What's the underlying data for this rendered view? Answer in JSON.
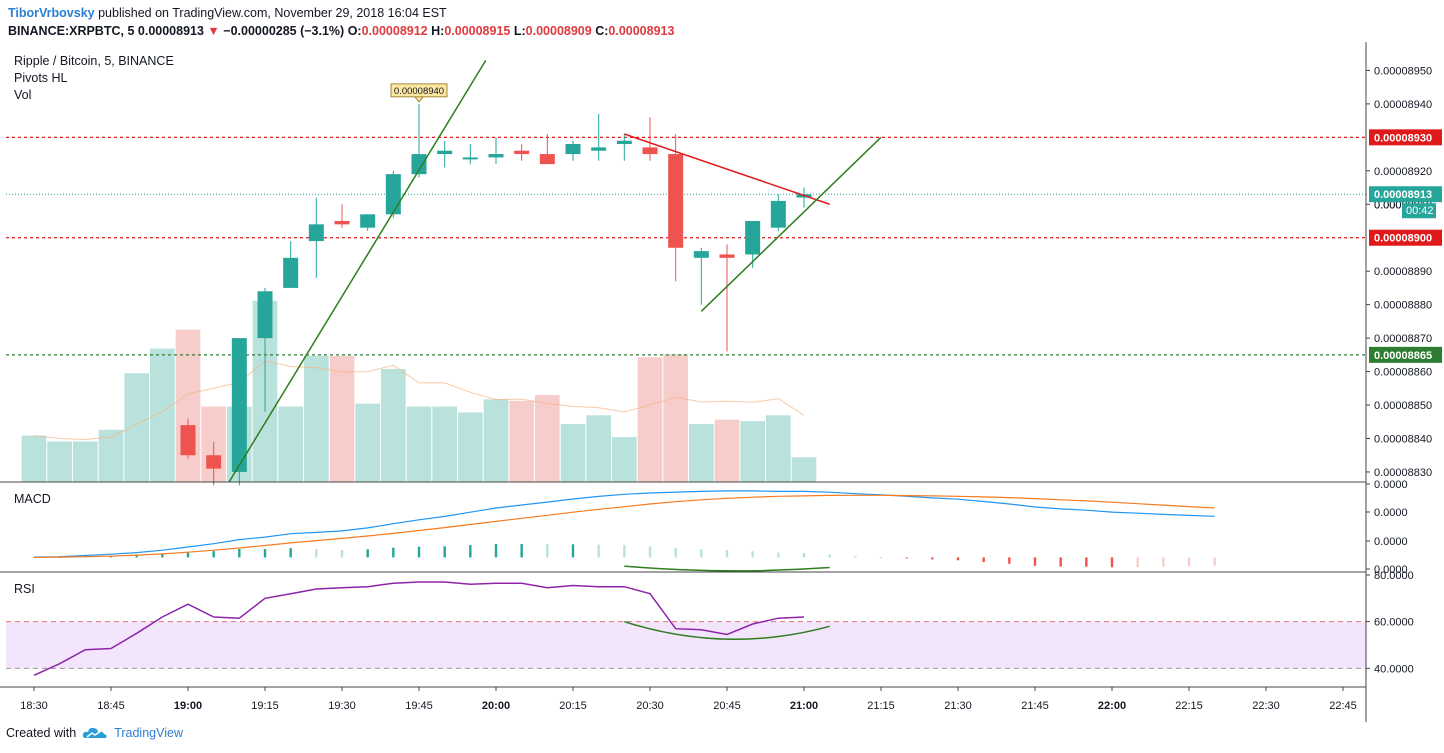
{
  "header": {
    "author": "TiborVrbovsky",
    "published": "published on TradingView.com, November 29, 2018 16:04 EST",
    "symbol": "BINANCE:XRPBTC, 5",
    "last": "0.00008913",
    "change": "−0.00000285 (−3.1%)",
    "ohlc": [
      {
        "k": "O:",
        "v": "0.00008912"
      },
      {
        "k": "H:",
        "v": "0.00008915"
      },
      {
        "k": "L:",
        "v": "0.00008909"
      },
      {
        "k": "C:",
        "v": "0.00008913"
      }
    ]
  },
  "legend": [
    "Ripple / Bitcoin, 5, BINANCE",
    "Pivots HL",
    "Vol"
  ],
  "pivot_label": "0.00008940",
  "footer": {
    "created_with": "Created with",
    "brand": "TradingView"
  },
  "colors": {
    "up": "#26a69a",
    "down": "#ef5350",
    "up_vol": "#b9e2dd",
    "down_vol": "#f7cdcc",
    "resistance": "#e0191b",
    "support": "#2e7d32",
    "trend_green": "#2e7d1e",
    "trend_red": "#e0191b",
    "macd": "#2196f3",
    "signal": "#f57c20",
    "rsi": "#8e24aa",
    "rsi_band": "#f3e5fc",
    "current": "#26a69a"
  },
  "chart_data": {
    "type": "candlestick",
    "price_axis": {
      "ticks": [
        "0.00008950",
        "0.00008940",
        "0.00008920",
        "0.00008910",
        "0.00008890",
        "0.00008880",
        "0.00008870",
        "0.00008860",
        "0.00008850",
        "0.00008840",
        "0.00008830"
      ],
      "tick_values": [
        8950,
        8940,
        8920,
        8910,
        8890,
        8880,
        8870,
        8860,
        8850,
        8840,
        8830
      ],
      "range": [
        8827,
        8957
      ],
      "unit": "1e-8 BTC"
    },
    "time_axis": {
      "labels": [
        "18:30",
        "18:45",
        "19:00",
        "19:15",
        "19:30",
        "19:45",
        "20:00",
        "20:15",
        "20:30",
        "20:45",
        "21:00",
        "21:15",
        "21:30",
        "21:45",
        "22:00",
        "22:15",
        "22:30",
        "22:45"
      ],
      "bold": [
        "19:00",
        "20:00",
        "21:00",
        "22:00"
      ]
    },
    "candles": [
      {
        "t": "19:00",
        "o": 8844,
        "h": 8846,
        "l": 8834,
        "c": 8835
      },
      {
        "t": "19:05",
        "o": 8835,
        "h": 8839,
        "l": 8826,
        "c": 8831
      },
      {
        "t": "19:10",
        "o": 8830,
        "h": 8870,
        "l": 8826,
        "c": 8870
      },
      {
        "t": "19:15",
        "o": 8870,
        "h": 8885,
        "l": 8848,
        "c": 8884
      },
      {
        "t": "19:20",
        "o": 8885,
        "h": 8899,
        "l": 8885,
        "c": 8894
      },
      {
        "t": "19:25",
        "o": 8899,
        "h": 8912,
        "l": 8888,
        "c": 8904
      },
      {
        "t": "19:30",
        "o": 8905,
        "h": 8910,
        "l": 8903,
        "c": 8904
      },
      {
        "t": "19:35",
        "o": 8903,
        "h": 8907,
        "l": 8902,
        "c": 8907
      },
      {
        "t": "19:40",
        "o": 8907,
        "h": 8920,
        "l": 8906,
        "c": 8919
      },
      {
        "t": "19:45",
        "o": 8919,
        "h": 8940,
        "l": 8918,
        "c": 8925
      },
      {
        "t": "19:50",
        "o": 8925,
        "h": 8929,
        "l": 8921,
        "c": 8926
      },
      {
        "t": "19:55",
        "o": 8924,
        "h": 8928,
        "l": 8922,
        "c": 8924
      },
      {
        "t": "20:00",
        "o": 8924,
        "h": 8930,
        "l": 8922,
        "c": 8925
      },
      {
        "t": "20:05",
        "o": 8926,
        "h": 8928,
        "l": 8923,
        "c": 8925
      },
      {
        "t": "20:10",
        "o": 8925,
        "h": 8931,
        "l": 8922,
        "c": 8922
      },
      {
        "t": "20:15",
        "o": 8925,
        "h": 8929,
        "l": 8923,
        "c": 8928
      },
      {
        "t": "20:20",
        "o": 8926,
        "h": 8937,
        "l": 8923,
        "c": 8927
      },
      {
        "t": "20:25",
        "o": 8928,
        "h": 8931,
        "l": 8923,
        "c": 8929
      },
      {
        "t": "20:30",
        "o": 8927,
        "h": 8936,
        "l": 8923,
        "c": 8925
      },
      {
        "t": "20:35",
        "o": 8925,
        "h": 8931,
        "l": 8887,
        "c": 8897
      },
      {
        "t": "20:40",
        "o": 8894,
        "h": 8897,
        "l": 8880,
        "c": 8896
      },
      {
        "t": "20:45",
        "o": 8895,
        "h": 8898,
        "l": 8866,
        "c": 8894
      },
      {
        "t": "20:50",
        "o": 8895,
        "h": 8905,
        "l": 8891,
        "c": 8905
      },
      {
        "t": "20:55",
        "o": 8903,
        "h": 8913,
        "l": 8902,
        "c": 8911
      },
      {
        "t": "21:00",
        "o": 8912,
        "h": 8915,
        "l": 8909,
        "c": 8913
      }
    ],
    "volume": [
      {
        "t": "18:30",
        "v": 3.2,
        "up": true
      },
      {
        "t": "18:35",
        "v": 2.8,
        "up": true
      },
      {
        "t": "18:40",
        "v": 2.8,
        "up": true
      },
      {
        "t": "18:45",
        "v": 3.6,
        "up": true
      },
      {
        "t": "18:50",
        "v": 7.5,
        "up": true
      },
      {
        "t": "18:55",
        "v": 9.2,
        "up": true
      },
      {
        "t": "19:00",
        "v": 10.5,
        "up": false
      },
      {
        "t": "19:05",
        "v": 5.2,
        "up": false
      },
      {
        "t": "19:10",
        "v": 5.2,
        "up": true
      },
      {
        "t": "19:15",
        "v": 12.5,
        "up": true
      },
      {
        "t": "19:20",
        "v": 5.2,
        "up": true
      },
      {
        "t": "19:25",
        "v": 8.7,
        "up": true
      },
      {
        "t": "19:30",
        "v": 8.7,
        "up": false
      },
      {
        "t": "19:35",
        "v": 5.4,
        "up": true
      },
      {
        "t": "19:40",
        "v": 7.8,
        "up": true
      },
      {
        "t": "19:45",
        "v": 5.2,
        "up": true
      },
      {
        "t": "19:50",
        "v": 5.2,
        "up": true
      },
      {
        "t": "19:55",
        "v": 4.8,
        "up": true
      },
      {
        "t": "20:00",
        "v": 5.7,
        "up": true
      },
      {
        "t": "20:05",
        "v": 5.6,
        "up": false
      },
      {
        "t": "20:10",
        "v": 6.0,
        "up": false
      },
      {
        "t": "20:15",
        "v": 4.0,
        "up": true
      },
      {
        "t": "20:20",
        "v": 4.6,
        "up": true
      },
      {
        "t": "20:25",
        "v": 3.1,
        "up": true
      },
      {
        "t": "20:30",
        "v": 8.6,
        "up": false
      },
      {
        "t": "20:35",
        "v": 8.8,
        "up": false
      },
      {
        "t": "20:40",
        "v": 4.0,
        "up": true
      },
      {
        "t": "20:45",
        "v": 4.3,
        "up": false
      },
      {
        "t": "20:50",
        "v": 4.2,
        "up": true
      },
      {
        "t": "20:55",
        "v": 4.6,
        "up": true
      },
      {
        "t": "21:00",
        "v": 1.7,
        "up": true
      }
    ],
    "horizontal_lines": [
      {
        "label": "0.00008930",
        "value": 8930,
        "kind": "resistance"
      },
      {
        "label": "0.00008900",
        "value": 8900,
        "kind": "resistance"
      },
      {
        "label": "0.00008865",
        "value": 8865,
        "kind": "support"
      }
    ],
    "current_price": {
      "label": "0.00008913",
      "value": 8913,
      "countdown": "00:42",
      "hidden_tick": "0.00008910"
    },
    "trendlines": [
      {
        "kind": "trend_green",
        "from": {
          "t": "19:08",
          "p": 8827
        },
        "to": {
          "t": "19:58",
          "p": 8953
        }
      },
      {
        "kind": "trend_red",
        "from": {
          "t": "20:25",
          "p": 8931
        },
        "to": {
          "t": "21:05",
          "p": 8910
        }
      },
      {
        "kind": "trend_green",
        "from": {
          "t": "20:40",
          "p": 8878
        },
        "to": {
          "t": "21:15",
          "p": 8930
        }
      }
    ],
    "macd": {
      "title": "MACD",
      "tick_labels": [
        "0.0000",
        "0.0000",
        "0.0000",
        "0.0000"
      ],
      "macd": [
        0.2,
        0.5,
        1.3,
        2.2,
        3.3,
        5.0,
        7.2,
        9.5,
        12.3,
        14.0,
        16.4,
        17.3,
        18.3,
        20.4,
        23.3,
        26.0,
        28.3,
        31.2,
        34.1,
        36.2,
        38.2,
        40.3,
        42.1,
        43.6,
        44.5,
        45.1,
        45.6,
        45.9,
        45.9,
        45.6,
        45.6,
        45.0,
        44.0,
        43.2,
        42.2,
        41.1,
        40.2,
        38.6,
        36.9,
        34.8,
        33.5,
        32.6,
        31.3,
        30.5,
        29.7,
        29.0,
        28.4
      ],
      "signal": [
        0.0,
        0.2,
        0.5,
        0.9,
        1.6,
        2.4,
        3.6,
        5.0,
        6.5,
        8.2,
        10.0,
        11.6,
        13.1,
        14.8,
        16.6,
        18.6,
        20.6,
        22.7,
        24.9,
        27.0,
        29.1,
        31.2,
        33.2,
        35.0,
        36.9,
        38.5,
        39.8,
        40.8,
        41.6,
        42.2,
        42.5,
        42.8,
        42.9,
        42.9,
        42.7,
        42.5,
        42.2,
        41.8,
        41.3,
        40.6,
        39.8,
        39.0,
        38.1,
        37.1,
        36.1,
        35.1,
        34.1
      ],
      "histogram": [
        0.2,
        0.3,
        0.8,
        1.3,
        1.7,
        2.6,
        3.6,
        4.5,
        5.8,
        5.8,
        6.4,
        5.7,
        5.2,
        5.6,
        6.7,
        7.4,
        7.7,
        8.5,
        9.2,
        9.2,
        9.1,
        9.1,
        8.9,
        8.6,
        7.6,
        6.6,
        5.8,
        5.1,
        4.3,
        3.4,
        3.1,
        2.2,
        1.1,
        0.3,
        -0.5,
        -1.4,
        -2.0,
        -3.2,
        -4.4,
        -5.8,
        -6.3,
        -6.4,
        -6.8,
        -6.6,
        -6.4,
        -6.1,
        -5.7
      ],
      "macd_x_start": "18:30",
      "step_minutes": 5,
      "range": [
        -8,
        50
      ]
    },
    "rsi": {
      "title": "RSI",
      "ticks": [
        "80.0000",
        "60.0000",
        "40.0000"
      ],
      "tick_values": [
        80,
        60,
        40
      ],
      "upper": 60,
      "lower": 40,
      "range": [
        35,
        80
      ],
      "values": [
        {
          "t": "18:30",
          "v": 37
        },
        {
          "t": "18:35",
          "v": 42
        },
        {
          "t": "18:40",
          "v": 48
        },
        {
          "t": "18:45",
          "v": 48.5
        },
        {
          "t": "18:50",
          "v": 55
        },
        {
          "t": "18:55",
          "v": 62
        },
        {
          "t": "19:00",
          "v": 67.5
        },
        {
          "t": "19:05",
          "v": 62
        },
        {
          "t": "19:10",
          "v": 61.5
        },
        {
          "t": "19:15",
          "v": 70
        },
        {
          "t": "19:20",
          "v": 72
        },
        {
          "t": "19:25",
          "v": 74
        },
        {
          "t": "19:30",
          "v": 74.5
        },
        {
          "t": "19:35",
          "v": 75
        },
        {
          "t": "19:40",
          "v": 76.5
        },
        {
          "t": "19:45",
          "v": 77
        },
        {
          "t": "19:50",
          "v": 77
        },
        {
          "t": "19:55",
          "v": 76
        },
        {
          "t": "20:00",
          "v": 76.5
        },
        {
          "t": "20:05",
          "v": 76.5
        },
        {
          "t": "20:10",
          "v": 74.5
        },
        {
          "t": "20:15",
          "v": 75.5
        },
        {
          "t": "20:20",
          "v": 75
        },
        {
          "t": "20:25",
          "v": 75
        },
        {
          "t": "20:30",
          "v": 72
        },
        {
          "t": "20:35",
          "v": 57
        },
        {
          "t": "20:40",
          "v": 56.5
        },
        {
          "t": "20:45",
          "v": 54.5
        },
        {
          "t": "20:50",
          "v": 59
        },
        {
          "t": "20:55",
          "v": 61.5
        },
        {
          "t": "21:00",
          "v": 62
        }
      ]
    }
  }
}
